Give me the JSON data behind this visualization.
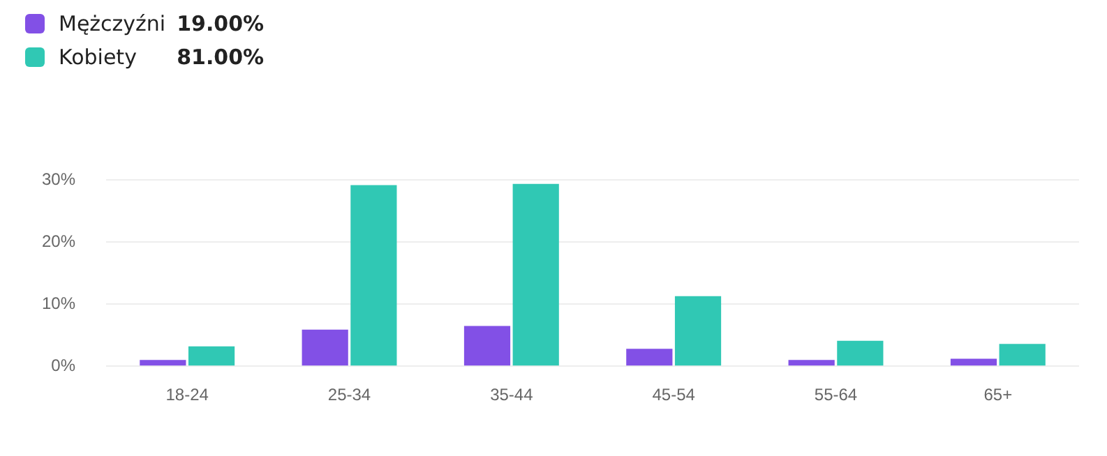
{
  "chart_data": {
    "type": "bar",
    "categories": [
      "18-24",
      "25-34",
      "35-44",
      "45-54",
      "55-64",
      "65+"
    ],
    "series": [
      {
        "name": "Mężczyźni",
        "color": "#8250e6",
        "values": [
          1.0,
          5.9,
          6.5,
          2.8,
          1.0,
          1.2
        ]
      },
      {
        "name": "Kobiety",
        "color": "#30c8b4",
        "values": [
          3.2,
          29.2,
          29.4,
          11.3,
          4.1,
          3.6
        ]
      }
    ],
    "annotations": [
      "19.00%",
      "81.00%"
    ],
    "ylim": [
      0,
      30
    ],
    "yticks": [
      {
        "value": 0,
        "label": "0%"
      },
      {
        "value": 10,
        "label": "10%"
      },
      {
        "value": 20,
        "label": "20%"
      },
      {
        "value": 30,
        "label": "30%"
      }
    ],
    "grid": "y",
    "legend": "top left"
  }
}
